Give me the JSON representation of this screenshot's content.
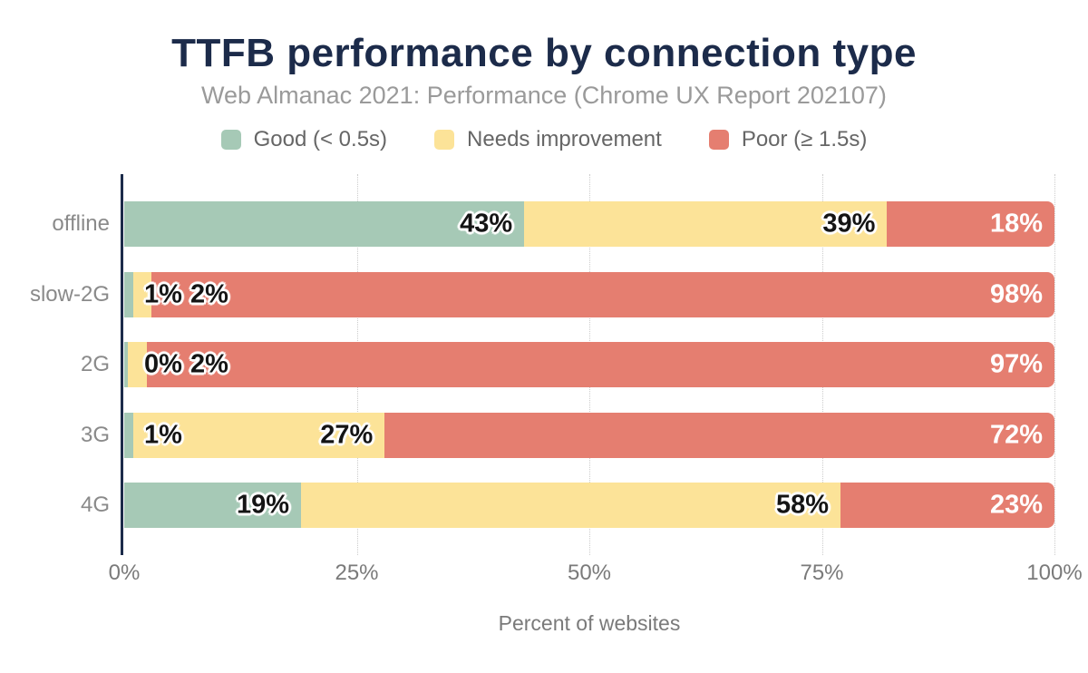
{
  "header": {
    "title": "TTFB performance by connection type",
    "subtitle": "Web Almanac 2021: Performance (Chrome UX Report 202107)"
  },
  "chart_data": {
    "type": "bar",
    "orientation": "horizontal",
    "stacked": true,
    "title": "TTFB performance by connection type",
    "subtitle": "Web Almanac 2021: Performance (Chrome UX Report 202107)",
    "categories": [
      "offline",
      "slow-2G",
      "2G",
      "3G",
      "4G"
    ],
    "series": [
      {
        "name": "Good (< 0.5s)",
        "color": "#a6c9b6",
        "values": [
          43,
          1,
          0,
          1,
          19
        ]
      },
      {
        "name": "Needs improvement",
        "color": "#fce398",
        "values": [
          39,
          2,
          2,
          27,
          58
        ]
      },
      {
        "name": "Poor (≥ 1.5s)",
        "color": "#e57e70",
        "values": [
          18,
          98,
          97,
          72,
          23
        ]
      }
    ],
    "value_suffix": "%",
    "xlim": [
      0,
      100
    ],
    "x_ticks": [
      {
        "value": 0,
        "label": "0%"
      },
      {
        "value": 25,
        "label": "25%"
      },
      {
        "value": 50,
        "label": "50%"
      },
      {
        "value": 75,
        "label": "75%"
      },
      {
        "value": 100,
        "label": "100%"
      }
    ],
    "xlabel": "Percent of websites",
    "grid": "vertical-dotted",
    "legend_position": "top"
  },
  "colors": {
    "title_navy": "#1c2b4a",
    "axis_line_navy": "#1c2b4a",
    "subtitle_gray": "#9a9a9a",
    "legend_text_gray": "#666666",
    "category_text_gray": "#8a8a8a",
    "tick_text_gray": "#7a7a7a",
    "axis_title_gray": "#7a7a7a",
    "grid_gray": "#cccccc",
    "label_on_light": "#141414",
    "label_on_dark": "#ffffff",
    "background": "#ffffff"
  }
}
